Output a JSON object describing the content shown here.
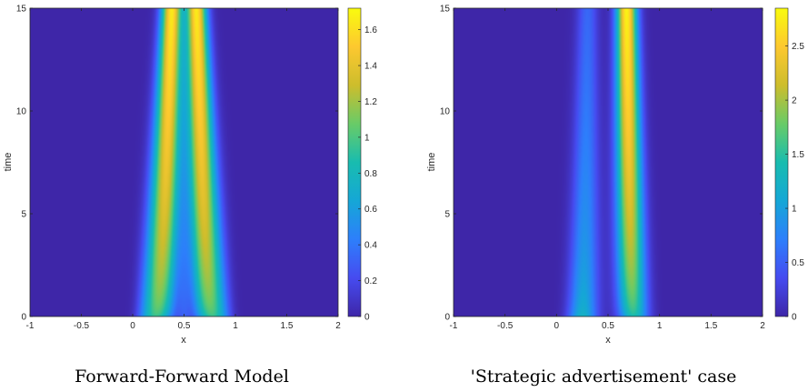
{
  "chart_data": [
    {
      "type": "heatmap",
      "title": "",
      "caption": "Forward-Forward Model",
      "xlabel": "x",
      "ylabel": "time",
      "xlim": [
        -1,
        2
      ],
      "ylim": [
        0,
        15
      ],
      "xticks": [
        -1,
        -0.5,
        0,
        0.5,
        1,
        1.5,
        2
      ],
      "xtick_labels": [
        "-1",
        "-0.5",
        "0",
        "0.5",
        "1",
        "1.5",
        "2"
      ],
      "yticks": [
        0,
        5,
        10,
        15
      ],
      "ytick_labels": [
        "0",
        "5",
        "10",
        "15"
      ],
      "colorbar": {
        "colormap": "parula",
        "range": [
          0,
          1.72
        ],
        "ticks": [
          0,
          0.2,
          0.4,
          0.6,
          0.8,
          1,
          1.2,
          1.4,
          1.6
        ],
        "tick_labels": [
          "0",
          "0.2",
          "0.4",
          "0.6",
          "0.8",
          "1",
          "1.2",
          "1.4",
          "1.6"
        ]
      },
      "description_data": {
        "support_x": [
          0,
          1
        ],
        "peaks": [
          {
            "x_at_t0": 0.22,
            "x_at_t15": 0.38,
            "value_t0": 0.9,
            "value_t15": 1.65
          },
          {
            "x_at_t0": 0.78,
            "x_at_t15": 0.62,
            "value_t0": 0.9,
            "value_t15": 1.65
          }
        ],
        "center_x": 0.5,
        "center_value_t0": 0.4
      }
    },
    {
      "type": "heatmap",
      "title": "",
      "caption": "'Strategic advertisement' case",
      "xlabel": "x",
      "ylabel": "time",
      "xlim": [
        -1,
        2
      ],
      "ylim": [
        0,
        15
      ],
      "xticks": [
        -1,
        -0.5,
        0,
        0.5,
        1,
        1.5,
        2
      ],
      "xtick_labels": [
        "-1",
        "-0.5",
        "0",
        "0.5",
        "1",
        "1.5",
        "2"
      ],
      "yticks": [
        0,
        5,
        10,
        15
      ],
      "ytick_labels": [
        "0",
        "5",
        "10",
        "15"
      ],
      "colorbar": {
        "colormap": "parula",
        "range": [
          0,
          2.85
        ],
        "ticks": [
          0,
          0.5,
          1,
          1.5,
          2,
          2.5
        ],
        "tick_labels": [
          "0",
          "0.5",
          "1",
          "1.5",
          "2",
          "2.5"
        ]
      },
      "description_data": {
        "support_x": [
          0,
          1
        ],
        "peaks": [
          {
            "x_at_t0": 0.25,
            "x_at_t15": 0.3,
            "value_t0": 1.3,
            "value_t15": 0.55
          },
          {
            "x_at_t0": 0.75,
            "x_at_t15": 0.68,
            "value_t0": 1.3,
            "value_t15": 2.8
          }
        ]
      }
    }
  ]
}
